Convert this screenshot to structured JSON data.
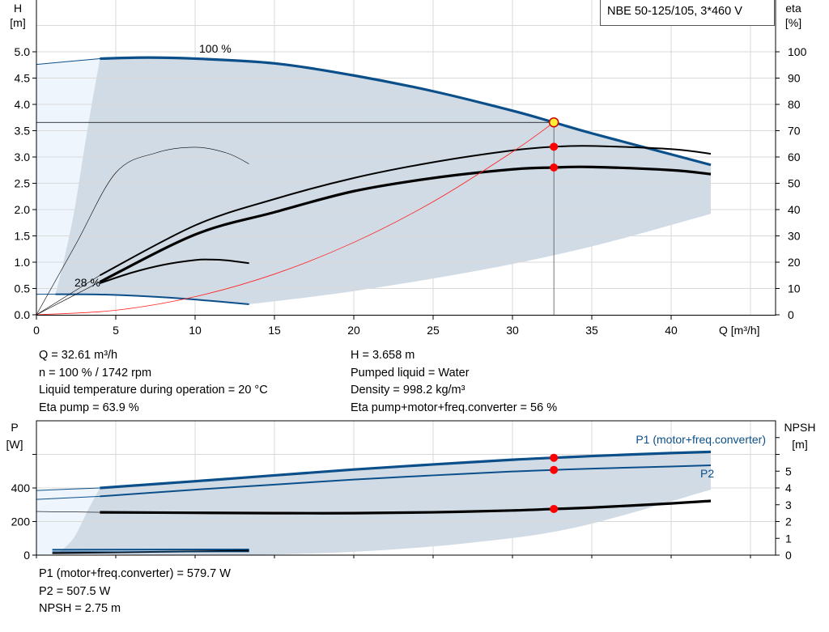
{
  "title": "NBE 50-125/105, 3*460 V",
  "colors": {
    "curve_blue": "#0b4f8a",
    "shade_dark": "#d0dbe6",
    "shade_light": "#eef5fd",
    "grid": "#d9d9d9",
    "system_curve": "#ff2020",
    "op_point": "#ff0000",
    "op_point_main": "#ffee33"
  },
  "info": {
    "left": [
      "Q = 32.61 m³/h",
      "n = 100 % / 1742 rpm",
      "Liquid temperature during operation = 20 °C",
      "Eta pump = 63.9 %"
    ],
    "right": [
      "H = 3.658 m",
      "Pumped liquid = Water",
      "Density = 998.2 kg/m³",
      "Eta pump+motor+freq.converter = 56 %"
    ],
    "bottom": [
      "P1 (motor+freq.converter) = 579.7 W",
      "P2 = 507.5 W",
      "NPSH = 2.75 m"
    ]
  },
  "chart_data": [
    {
      "type": "line",
      "name_hint": "head-efficiency",
      "ylabel_left": [
        "H",
        "[m]"
      ],
      "ylabel_right": [
        "eta",
        "[%]"
      ],
      "xlabel": "Q [m³/h]",
      "xlim": [
        0,
        47
      ],
      "ylim_left": [
        0,
        6
      ],
      "ylim_right": [
        0,
        120
      ],
      "x_ticks": [
        0,
        5,
        10,
        15,
        20,
        25,
        30,
        35,
        40
      ],
      "y_ticks_left": [
        "0.0",
        "0.5",
        "1.0",
        "1.5",
        "2.0",
        "2.5",
        "3.0",
        "3.5",
        "4.0",
        "4.5",
        "5.0"
      ],
      "y_ticks_right": [
        "0",
        "10",
        "20",
        "30",
        "40",
        "50",
        "60",
        "70",
        "80",
        "90",
        "100"
      ],
      "grid": true,
      "annotations": [
        {
          "text": "100 %",
          "q": 11.5,
          "h": 5.05
        },
        {
          "text": "28 %",
          "q": 2.4,
          "h": 0.55
        }
      ],
      "series": [
        {
          "id": "head-100",
          "axis": "H",
          "style": "blue-thick",
          "points": [
            [
              4,
              4.87
            ],
            [
              7,
              4.89
            ],
            [
              10,
              4.87
            ],
            [
              15,
              4.78
            ],
            [
              20,
              4.55
            ],
            [
              25,
              4.25
            ],
            [
              30,
              3.88
            ],
            [
              32.61,
              3.658
            ],
            [
              35,
              3.45
            ],
            [
              40,
              3.05
            ],
            [
              42.5,
              2.85
            ]
          ]
        },
        {
          "id": "head-100-ext",
          "axis": "H",
          "style": "blue-thin",
          "points": [
            [
              0,
              4.76
            ],
            [
              4,
              4.87
            ]
          ]
        },
        {
          "id": "head-28",
          "axis": "H",
          "style": "blue-medium",
          "points": [
            [
              1.2,
              0.39
            ],
            [
              4,
              0.385
            ],
            [
              7,
              0.35
            ],
            [
              10,
              0.29
            ],
            [
              13.4,
              0.2
            ]
          ]
        },
        {
          "id": "head-28-ext",
          "axis": "H",
          "style": "blue-thin",
          "points": [
            [
              0,
              0.39
            ],
            [
              1.2,
              0.39
            ]
          ]
        },
        {
          "id": "eta-low-thin",
          "axis": "eta",
          "style": "black-hair",
          "points": [
            [
              0,
              0
            ],
            [
              2.5,
              27
            ],
            [
              5,
              54
            ],
            [
              7.5,
              61.5
            ],
            [
              10,
              63.7
            ],
            [
              12,
              61.5
            ],
            [
              13.4,
              57.4
            ]
          ]
        },
        {
          "id": "eta-pump",
          "axis": "eta",
          "style": "black-medium",
          "points": [
            [
              4,
              15
            ],
            [
              10,
              34
            ],
            [
              15,
              44
            ],
            [
              20,
              52
            ],
            [
              25,
              58
            ],
            [
              30,
              62.5
            ],
            [
              32.61,
              63.9
            ],
            [
              35,
              64.2
            ],
            [
              40,
              63
            ],
            [
              42.5,
              61.2
            ]
          ]
        },
        {
          "id": "eta-pump-ext",
          "axis": "eta",
          "style": "black-hair",
          "points": [
            [
              0,
              0
            ],
            [
              4,
              15
            ]
          ]
        },
        {
          "id": "eta-total",
          "axis": "eta",
          "style": "black-thick",
          "points": [
            [
              4,
              12.5
            ],
            [
              10,
              30.5
            ],
            [
              15,
              39
            ],
            [
              20,
              47
            ],
            [
              25,
              52
            ],
            [
              30,
              55.3
            ],
            [
              32.61,
              56
            ],
            [
              35,
              56.2
            ],
            [
              40,
              55
            ],
            [
              42.5,
              53.5
            ]
          ]
        },
        {
          "id": "eta-total-ext",
          "axis": "eta",
          "style": "black-hair",
          "points": [
            [
              0,
              0
            ],
            [
              4,
              12.5
            ]
          ]
        },
        {
          "id": "eta-low-speed",
          "axis": "eta",
          "style": "black-medium",
          "points": [
            [
              4,
              12
            ],
            [
              6,
              16
            ],
            [
              8,
              19
            ],
            [
              10,
              20.8
            ],
            [
              11,
              21
            ],
            [
              12,
              20.7
            ],
            [
              13.4,
              19.6
            ]
          ]
        },
        {
          "id": "system-curve",
          "axis": "H",
          "style": "red-thin",
          "points": [
            [
              0,
              0
            ],
            [
              5,
              0.086
            ],
            [
              10,
              0.344
            ],
            [
              15,
              0.774
            ],
            [
              20,
              1.376
            ],
            [
              25,
              2.15
            ],
            [
              30,
              3.096
            ],
            [
              32.61,
              3.658
            ]
          ]
        }
      ],
      "duty_point": {
        "q": 32.61,
        "h": 3.658,
        "eta_pump": 63.9,
        "eta_total": 56
      }
    },
    {
      "type": "line",
      "name_hint": "power-npsh",
      "ylabel_left": [
        "P",
        "[W]"
      ],
      "ylabel_right": [
        "NPSH",
        "[m]"
      ],
      "xlim": [
        0,
        47
      ],
      "ylim_left": [
        0,
        800
      ],
      "ylim_right": [
        0,
        8
      ],
      "y_ticks_left": [
        "0",
        "200",
        "400"
      ],
      "y_ticks_right": [
        "0",
        "1",
        "2",
        "3",
        "4",
        "5"
      ],
      "grid": true,
      "series": [
        {
          "id": "p1",
          "name": "P1 (motor+freq.converter)",
          "axis": "P",
          "style": "blue-thick",
          "points": [
            [
              4,
              400
            ],
            [
              10,
              440
            ],
            [
              15,
              475
            ],
            [
              20,
              510
            ],
            [
              25,
              540
            ],
            [
              30,
              568
            ],
            [
              32.61,
              579.7
            ],
            [
              35,
              590
            ],
            [
              40,
              608
            ],
            [
              42.5,
              615
            ]
          ]
        },
        {
          "id": "p1-ext",
          "axis": "P",
          "style": "blue-thin",
          "points": [
            [
              0,
              385
            ],
            [
              4,
              400
            ]
          ]
        },
        {
          "id": "p2",
          "name": "P2",
          "axis": "P",
          "style": "blue-medium",
          "points": [
            [
              4,
              350
            ],
            [
              10,
              390
            ],
            [
              15,
              420
            ],
            [
              20,
              450
            ],
            [
              25,
              475
            ],
            [
              30,
              498
            ],
            [
              32.61,
              507.5
            ],
            [
              35,
              515
            ],
            [
              40,
              528
            ],
            [
              42.5,
              535
            ]
          ]
        },
        {
          "id": "p2-ext",
          "axis": "P",
          "style": "blue-thin",
          "points": [
            [
              0,
              332
            ],
            [
              4,
              350
            ]
          ]
        },
        {
          "id": "npsh",
          "axis": "NPSH",
          "style": "black-thick",
          "points": [
            [
              4,
              2.55
            ],
            [
              10,
              2.52
            ],
            [
              15,
              2.5
            ],
            [
              20,
              2.5
            ],
            [
              25,
              2.55
            ],
            [
              30,
              2.66
            ],
            [
              32.61,
              2.75
            ],
            [
              35,
              2.83
            ],
            [
              40,
              3.08
            ],
            [
              42.5,
              3.23
            ]
          ]
        },
        {
          "id": "npsh-ext",
          "axis": "NPSH",
          "style": "black-hair",
          "points": [
            [
              0,
              2.6
            ],
            [
              4,
              2.55
            ]
          ]
        },
        {
          "id": "p1-low",
          "axis": "P",
          "style": "blue-medium",
          "points": [
            [
              1,
              32
            ],
            [
              13.4,
              34
            ]
          ]
        },
        {
          "id": "npsh-low",
          "axis": "P",
          "style": "black-medium",
          "points": [
            [
              1,
              12
            ],
            [
              13.4,
              26
            ]
          ]
        },
        {
          "id": "p2-low",
          "axis": "P",
          "style": "blue-thin",
          "points": [
            [
              1,
              20
            ],
            [
              13.4,
              20
            ]
          ]
        }
      ],
      "duty_point": {
        "q": 32.61,
        "p1": 579.7,
        "p2": 507.5,
        "npsh": 2.75
      }
    }
  ]
}
